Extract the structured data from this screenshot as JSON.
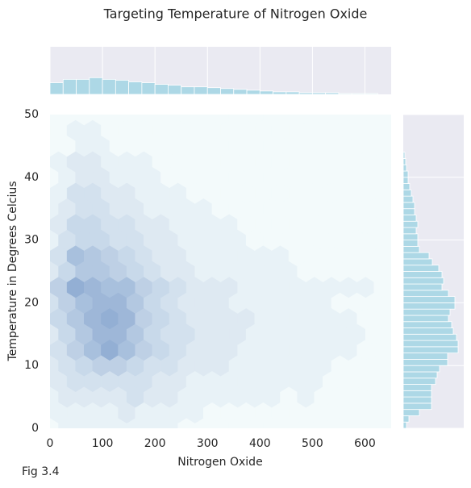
{
  "chart_data": [
    {
      "type": "hexbin",
      "title": "Targeting Temperature of Nitrogen Oxide",
      "x_label": "Nitrogen Oxide",
      "y_label": "Temperature in Degrees Celcius",
      "caption": "Fig 3.4",
      "xlim": [
        0,
        650
      ],
      "ylim": [
        0,
        50
      ],
      "xticks": [
        0,
        100,
        200,
        300,
        400,
        500,
        600
      ],
      "yticks": [
        0,
        10,
        20,
        30,
        40,
        50
      ],
      "cmap": [
        "#f3fafb",
        "#93afd4"
      ],
      "hex_x_a": [
        0,
        32.5,
        65,
        97.5,
        130,
        162.5,
        195,
        227.5,
        260,
        292.5,
        325,
        357.5,
        390,
        422.5,
        455,
        487.5,
        520,
        552.5,
        585,
        617.5,
        650
      ],
      "hex_x_b": [
        16.25,
        48.75,
        81.25,
        113.75,
        146.25,
        178.75,
        211.25,
        243.75,
        276.25,
        308.75,
        341.25,
        373.75,
        406.25,
        438.75,
        471.25,
        503.75,
        536.25,
        568.75,
        601.25,
        633.75
      ],
      "rows": [
        {
          "y": 0,
          "lattice": "a",
          "counts": [
            0,
            1,
            1,
            1,
            1,
            1,
            1,
            1,
            0,
            0,
            0,
            0,
            0,
            0,
            0,
            0,
            0,
            0,
            0,
            0,
            0
          ]
        },
        {
          "y": 2.5,
          "lattice": "b",
          "counts": [
            1,
            1,
            1,
            1,
            2,
            1,
            1,
            1,
            1,
            0,
            0,
            0,
            0,
            0,
            0,
            0,
            0,
            0,
            0,
            0
          ]
        },
        {
          "y": 5,
          "lattice": "a",
          "counts": [
            1,
            2,
            2,
            2,
            2,
            3,
            2,
            2,
            1,
            1,
            1,
            1,
            1,
            1,
            0,
            1,
            0,
            0,
            0,
            0,
            0
          ]
        },
        {
          "y": 7.5,
          "lattice": "b",
          "counts": [
            2,
            3,
            3,
            3,
            3,
            3,
            2,
            2,
            1,
            1,
            1,
            1,
            1,
            1,
            1,
            1,
            0,
            0,
            0,
            0
          ]
        },
        {
          "y": 10,
          "lattice": "a",
          "counts": [
            2,
            3,
            4,
            5,
            5,
            4,
            3,
            3,
            2,
            2,
            2,
            1,
            1,
            1,
            1,
            1,
            1,
            0,
            0,
            0,
            0
          ]
        },
        {
          "y": 12.5,
          "lattice": "b",
          "counts": [
            3,
            5,
            7,
            9,
            7,
            5,
            4,
            3,
            2,
            2,
            2,
            1,
            1,
            1,
            1,
            1,
            1,
            1,
            0,
            0
          ]
        },
        {
          "y": 15,
          "lattice": "a",
          "counts": [
            2,
            4,
            6,
            8,
            8,
            6,
            4,
            3,
            3,
            2,
            2,
            2,
            1,
            1,
            1,
            1,
            1,
            1,
            1,
            0,
            0
          ]
        },
        {
          "y": 17.5,
          "lattice": "b",
          "counts": [
            4,
            6,
            8,
            9,
            8,
            5,
            4,
            3,
            2,
            2,
            2,
            2,
            1,
            1,
            1,
            1,
            1,
            1,
            0,
            0
          ]
        },
        {
          "y": 20,
          "lattice": "a",
          "counts": [
            3,
            5,
            7,
            8,
            8,
            6,
            4,
            3,
            2,
            2,
            2,
            1,
            1,
            1,
            1,
            1,
            1,
            0,
            0,
            0,
            0
          ]
        },
        {
          "y": 22.5,
          "lattice": "b",
          "counts": [
            5,
            9,
            8,
            7,
            7,
            5,
            4,
            3,
            2,
            2,
            2,
            1,
            1,
            1,
            1,
            1,
            1,
            1,
            1,
            0
          ]
        },
        {
          "y": 25,
          "lattice": "a",
          "counts": [
            2,
            4,
            6,
            6,
            5,
            4,
            3,
            2,
            2,
            1,
            1,
            1,
            1,
            1,
            1,
            0,
            0,
            0,
            0,
            0,
            0
          ]
        },
        {
          "y": 27.5,
          "lattice": "b",
          "counts": [
            3,
            7,
            6,
            5,
            4,
            3,
            2,
            2,
            1,
            1,
            1,
            1,
            1,
            1,
            0,
            0,
            0,
            0,
            0,
            0
          ]
        },
        {
          "y": 30,
          "lattice": "a",
          "counts": [
            1,
            3,
            4,
            4,
            3,
            3,
            2,
            2,
            1,
            1,
            1,
            1,
            0,
            0,
            0,
            0,
            0,
            0,
            0,
            0,
            0
          ]
        },
        {
          "y": 32.5,
          "lattice": "b",
          "counts": [
            2,
            4,
            4,
            3,
            3,
            2,
            2,
            1,
            1,
            1,
            1,
            0,
            0,
            0,
            0,
            0,
            0,
            0,
            0,
            0
          ]
        },
        {
          "y": 35,
          "lattice": "a",
          "counts": [
            1,
            2,
            3,
            3,
            2,
            2,
            1,
            1,
            1,
            1,
            0,
            0,
            0,
            0,
            0,
            0,
            0,
            0,
            0,
            0,
            0
          ]
        },
        {
          "y": 37.5,
          "lattice": "b",
          "counts": [
            1,
            3,
            3,
            2,
            2,
            1,
            1,
            1,
            0,
            0,
            0,
            0,
            0,
            0,
            0,
            0,
            0,
            0,
            0,
            0
          ]
        },
        {
          "y": 40,
          "lattice": "a",
          "counts": [
            0,
            1,
            2,
            2,
            1,
            1,
            1,
            0,
            0,
            0,
            0,
            0,
            0,
            0,
            0,
            0,
            0,
            0,
            0,
            0,
            0
          ]
        },
        {
          "y": 42.5,
          "lattice": "b",
          "counts": [
            1,
            2,
            2,
            1,
            1,
            1,
            0,
            0,
            0,
            0,
            0,
            0,
            0,
            0,
            0,
            0,
            0,
            0,
            0,
            0
          ]
        },
        {
          "y": 45,
          "lattice": "a",
          "counts": [
            0,
            0,
            1,
            1,
            0,
            0,
            0,
            0,
            0,
            0,
            0,
            0,
            0,
            0,
            0,
            0,
            0,
            0,
            0,
            0,
            0
          ]
        },
        {
          "y": 47.5,
          "lattice": "b",
          "counts": [
            0,
            1,
            1,
            0,
            0,
            0,
            0,
            0,
            0,
            0,
            0,
            0,
            0,
            0,
            0,
            0,
            0,
            0,
            0,
            0
          ]
        },
        {
          "y": 50,
          "lattice": "a",
          "counts": [
            0,
            0,
            0,
            0,
            0,
            0,
            0,
            0,
            0,
            0,
            0,
            0,
            0,
            0,
            0,
            0,
            0,
            0,
            0,
            0,
            0
          ]
        }
      ]
    },
    {
      "type": "histogram",
      "orientation": "vertical",
      "color": "#add8e6",
      "bins": [
        0,
        25,
        50,
        75,
        100,
        125,
        150,
        175,
        200,
        225,
        250,
        275,
        300,
        325,
        350,
        375,
        400,
        425,
        450,
        475,
        500,
        525,
        550,
        575,
        600,
        625
      ],
      "counts": [
        140,
        180,
        180,
        200,
        180,
        170,
        150,
        140,
        120,
        110,
        90,
        90,
        80,
        70,
        60,
        50,
        40,
        30,
        30,
        20,
        20,
        20,
        10,
        10,
        10
      ],
      "ylim": [
        0,
        570
      ]
    },
    {
      "type": "histogram",
      "orientation": "horizontal",
      "color": "#add8e6",
      "bins": [
        0,
        1,
        2,
        3,
        4,
        5,
        6,
        7,
        8,
        9,
        10,
        11,
        12,
        13,
        14,
        15,
        16,
        17,
        18,
        19,
        20,
        21,
        22,
        23,
        24,
        25,
        26,
        27,
        28,
        29,
        30,
        31,
        32,
        33,
        34,
        35,
        36,
        37,
        38,
        39,
        40,
        41,
        42,
        43,
        44
      ],
      "counts": [
        12,
        21,
        60,
        105,
        105,
        105,
        105,
        120,
        126,
        135,
        165,
        165,
        204,
        204,
        198,
        186,
        180,
        168,
        174,
        192,
        192,
        168,
        144,
        150,
        144,
        132,
        108,
        96,
        60,
        54,
        54,
        48,
        54,
        48,
        42,
        42,
        36,
        30,
        24,
        18,
        18,
        12,
        9,
        6
      ],
      "xlim": [
        0,
        225
      ]
    }
  ]
}
